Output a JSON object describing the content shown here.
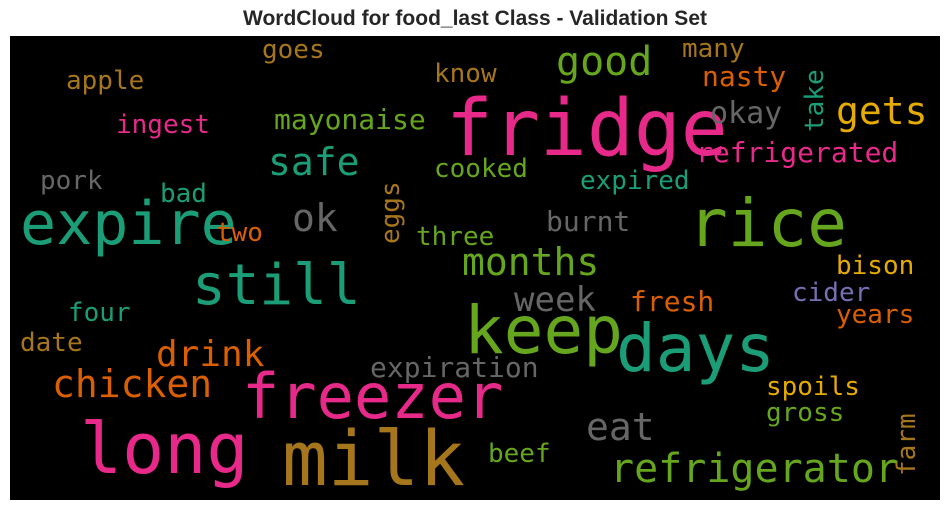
{
  "title": "WordCloud for food_last Class - Validation Set",
  "chart_data": {
    "type": "wordcloud",
    "title": "WordCloud for food_last Class - Validation Set",
    "background": "#000000",
    "words": [
      {
        "text": "fridge",
        "color": "#e7298a",
        "orientation": "horizontal"
      },
      {
        "text": "milk",
        "color": "#a6761d",
        "orientation": "horizontal"
      },
      {
        "text": "long",
        "color": "#e7298a",
        "orientation": "horizontal"
      },
      {
        "text": "keep",
        "color": "#66a61e",
        "orientation": "horizontal"
      },
      {
        "text": "days",
        "color": "#1b9e77",
        "orientation": "horizontal"
      },
      {
        "text": "freezer",
        "color": "#e7298a",
        "orientation": "horizontal"
      },
      {
        "text": "rice",
        "color": "#66a61e",
        "orientation": "horizontal"
      },
      {
        "text": "expire",
        "color": "#1b9e77",
        "orientation": "horizontal"
      },
      {
        "text": "still",
        "color": "#1b9e77",
        "orientation": "horizontal"
      },
      {
        "text": "refrigerator",
        "color": "#66a61e",
        "orientation": "horizontal"
      },
      {
        "text": "good",
        "color": "#66a61e",
        "orientation": "horizontal"
      },
      {
        "text": "gets",
        "color": "#e6ab02",
        "orientation": "horizontal"
      },
      {
        "text": "safe",
        "color": "#1b9e77",
        "orientation": "horizontal"
      },
      {
        "text": "months",
        "color": "#66a61e",
        "orientation": "horizontal"
      },
      {
        "text": "drink",
        "color": "#d95f02",
        "orientation": "horizontal"
      },
      {
        "text": "chicken",
        "color": "#d95f02",
        "orientation": "horizontal"
      },
      {
        "text": "eat",
        "color": "#666666",
        "orientation": "horizontal"
      },
      {
        "text": "ok",
        "color": "#666666",
        "orientation": "horizontal"
      },
      {
        "text": "week",
        "color": "#666666",
        "orientation": "horizontal"
      },
      {
        "text": "refrigerated",
        "color": "#e7298a",
        "orientation": "horizontal"
      },
      {
        "text": "mayonaise",
        "color": "#66a61e",
        "orientation": "horizontal"
      },
      {
        "text": "expiration",
        "color": "#666666",
        "orientation": "horizontal"
      },
      {
        "text": "okay",
        "color": "#666666",
        "orientation": "horizontal"
      },
      {
        "text": "nasty",
        "color": "#d95f02",
        "orientation": "horizontal"
      },
      {
        "text": "many",
        "color": "#a6761d",
        "orientation": "horizontal"
      },
      {
        "text": "know",
        "color": "#a6761d",
        "orientation": "horizontal"
      },
      {
        "text": "goes",
        "color": "#a6761d",
        "orientation": "horizontal"
      },
      {
        "text": "apple",
        "color": "#a6761d",
        "orientation": "horizontal"
      },
      {
        "text": "ingest",
        "color": "#e7298a",
        "orientation": "horizontal"
      },
      {
        "text": "cooked",
        "color": "#66a61e",
        "orientation": "horizontal"
      },
      {
        "text": "expired",
        "color": "#1b9e77",
        "orientation": "horizontal"
      },
      {
        "text": "pork",
        "color": "#666666",
        "orientation": "horizontal"
      },
      {
        "text": "bad",
        "color": "#1b9e77",
        "orientation": "horizontal"
      },
      {
        "text": "two",
        "color": "#d95f02",
        "orientation": "horizontal"
      },
      {
        "text": "three",
        "color": "#66a61e",
        "orientation": "horizontal"
      },
      {
        "text": "burnt",
        "color": "#666666",
        "orientation": "horizontal"
      },
      {
        "text": "bison",
        "color": "#e6ab02",
        "orientation": "horizontal"
      },
      {
        "text": "cider",
        "color": "#7570b3",
        "orientation": "horizontal"
      },
      {
        "text": "years",
        "color": "#d95f02",
        "orientation": "horizontal"
      },
      {
        "text": "fresh",
        "color": "#d95f02",
        "orientation": "horizontal"
      },
      {
        "text": "four",
        "color": "#1b9e77",
        "orientation": "horizontal"
      },
      {
        "text": "date",
        "color": "#a6761d",
        "orientation": "horizontal"
      },
      {
        "text": "spoils",
        "color": "#e6ab02",
        "orientation": "horizontal"
      },
      {
        "text": "gross",
        "color": "#66a61e",
        "orientation": "horizontal"
      },
      {
        "text": "beef",
        "color": "#66a61e",
        "orientation": "horizontal"
      },
      {
        "text": "take",
        "color": "#1b9e77",
        "orientation": "vertical"
      },
      {
        "text": "eggs",
        "color": "#a6761d",
        "orientation": "vertical"
      },
      {
        "text": "farm",
        "color": "#a6761d",
        "orientation": "vertical"
      }
    ]
  }
}
